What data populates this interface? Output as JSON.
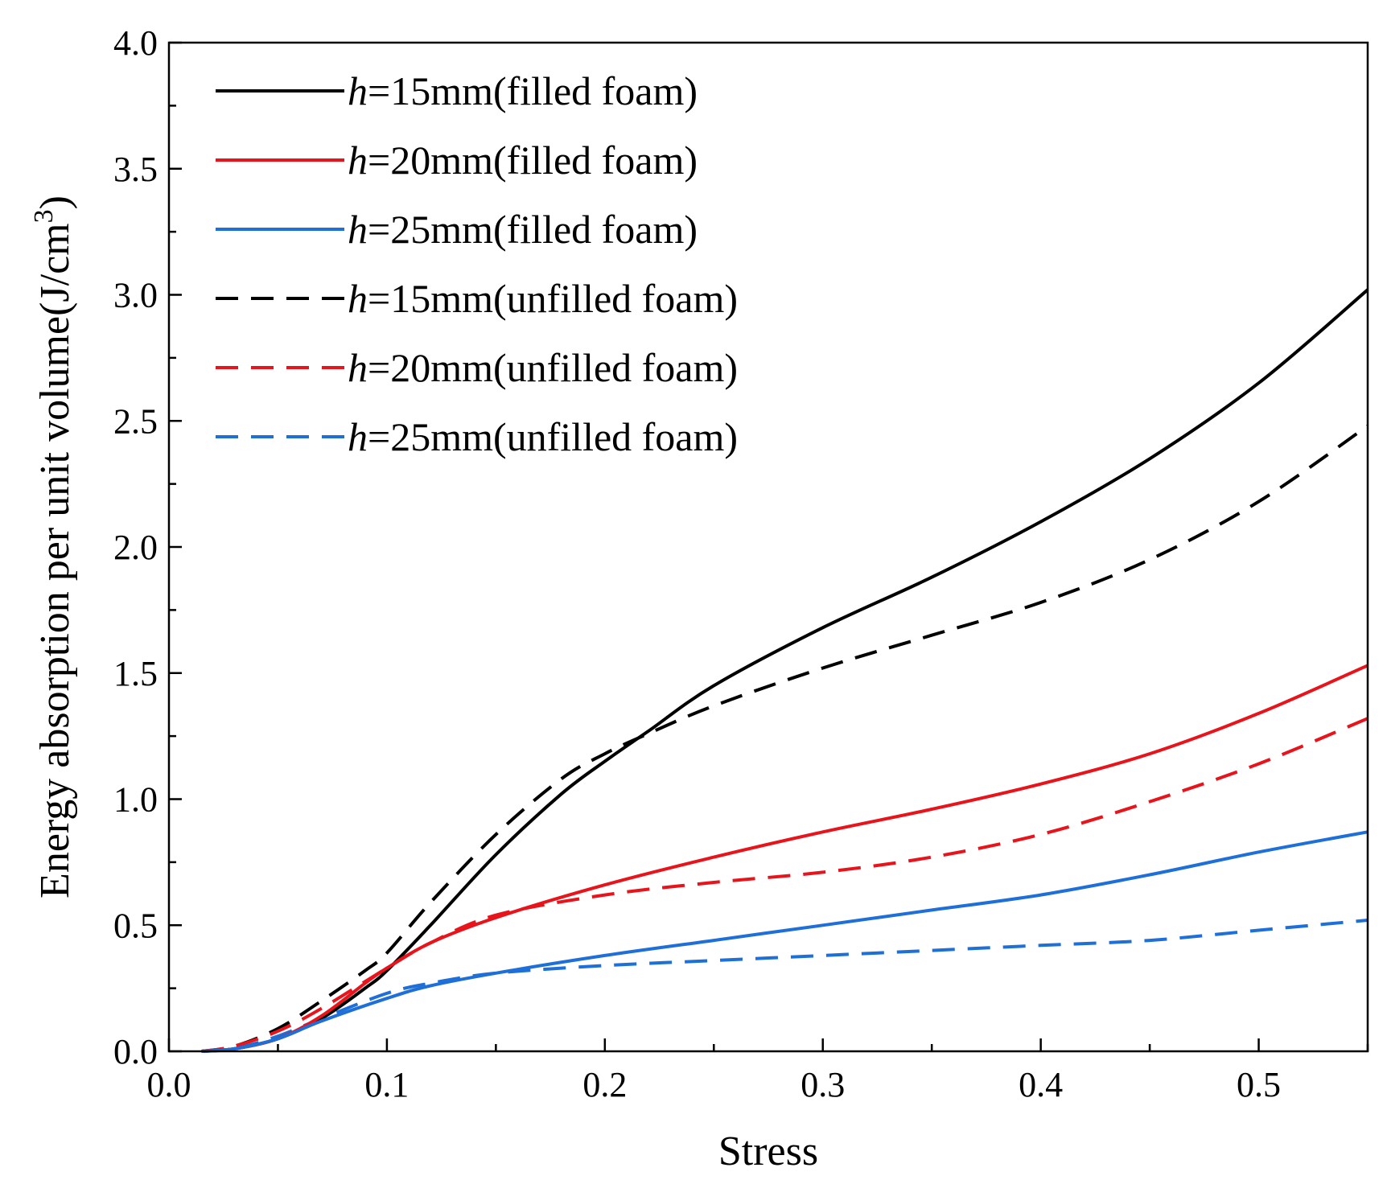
{
  "chart_data": {
    "type": "line",
    "title": "",
    "xlabel": "Stress",
    "ylabel": "Energy absorption per unit volume(J/cm³)",
    "ylabel_main": "Energy absorption per unit volume(J/cm",
    "ylabel_sup": "3",
    "ylabel_close": ")",
    "xlim": [
      0.0,
      0.55
    ],
    "ylim": [
      0.0,
      4.0
    ],
    "xticks": [
      "0.0",
      "0.1",
      "0.2",
      "0.3",
      "0.4",
      "0.5"
    ],
    "yticks": [
      "0.0",
      "0.5",
      "1.0",
      "1.5",
      "2.0",
      "2.5",
      "3.0",
      "3.5",
      "4.0"
    ],
    "legend_position": "top-left",
    "series": [
      {
        "name": "h=15mm(filled foam)",
        "label_var": "h",
        "label_rest": "=15mm(filled foam)",
        "color": "#000000",
        "dash": "solid",
        "x": [
          0.015,
          0.03,
          0.05,
          0.07,
          0.09,
          0.1,
          0.12,
          0.15,
          0.18,
          0.2,
          0.22,
          0.25,
          0.3,
          0.35,
          0.4,
          0.45,
          0.5,
          0.55
        ],
        "y": [
          0.0,
          0.01,
          0.05,
          0.13,
          0.25,
          0.32,
          0.5,
          0.78,
          1.02,
          1.15,
          1.27,
          1.45,
          1.68,
          1.88,
          2.1,
          2.35,
          2.65,
          3.02
        ]
      },
      {
        "name": "h=20mm(filled foam)",
        "label_var": "h",
        "label_rest": "=20mm(filled foam)",
        "color": "#e8141c",
        "dash": "solid",
        "x": [
          0.015,
          0.03,
          0.05,
          0.07,
          0.09,
          0.1,
          0.12,
          0.15,
          0.2,
          0.25,
          0.3,
          0.35,
          0.4,
          0.45,
          0.5,
          0.55
        ],
        "y": [
          0.0,
          0.01,
          0.05,
          0.14,
          0.27,
          0.33,
          0.43,
          0.53,
          0.66,
          0.77,
          0.87,
          0.96,
          1.06,
          1.18,
          1.34,
          1.53
        ]
      },
      {
        "name": "h=25mm(filled foam)",
        "label_var": "h",
        "label_rest": "=25mm(filled foam)",
        "color": "#1f6fd8",
        "dash": "solid",
        "x": [
          0.015,
          0.03,
          0.05,
          0.07,
          0.1,
          0.12,
          0.15,
          0.2,
          0.25,
          0.3,
          0.35,
          0.4,
          0.45,
          0.5,
          0.55
        ],
        "y": [
          0.0,
          0.01,
          0.05,
          0.12,
          0.21,
          0.26,
          0.31,
          0.38,
          0.44,
          0.5,
          0.56,
          0.62,
          0.7,
          0.79,
          0.87
        ]
      },
      {
        "name": "h=15mm(unfilled foam)",
        "label_var": "h",
        "label_rest": "=15mm(unfilled foam)",
        "color": "#000000",
        "dash": "dashed",
        "x": [
          0.015,
          0.03,
          0.05,
          0.07,
          0.09,
          0.1,
          0.12,
          0.15,
          0.18,
          0.2,
          0.22,
          0.25,
          0.3,
          0.35,
          0.4,
          0.45,
          0.5,
          0.55
        ],
        "y": [
          0.0,
          0.02,
          0.09,
          0.2,
          0.32,
          0.39,
          0.59,
          0.86,
          1.08,
          1.18,
          1.26,
          1.37,
          1.52,
          1.65,
          1.78,
          1.95,
          2.18,
          2.48
        ]
      },
      {
        "name": "h=20mm(unfilled foam)",
        "label_var": "h",
        "label_rest": "=20mm(unfilled foam)",
        "color": "#e8141c",
        "dash": "dashed",
        "x": [
          0.015,
          0.03,
          0.05,
          0.07,
          0.1,
          0.12,
          0.15,
          0.2,
          0.25,
          0.3,
          0.35,
          0.4,
          0.45,
          0.5,
          0.55
        ],
        "y": [
          0.0,
          0.02,
          0.08,
          0.17,
          0.33,
          0.43,
          0.54,
          0.62,
          0.67,
          0.71,
          0.77,
          0.86,
          0.99,
          1.14,
          1.32
        ]
      },
      {
        "name": "h=25mm(unfilled foam)",
        "label_var": "h",
        "label_rest": "=25mm(unfilled foam)",
        "color": "#1f6fd8",
        "dash": "dashed",
        "x": [
          0.015,
          0.03,
          0.05,
          0.07,
          0.1,
          0.12,
          0.15,
          0.2,
          0.25,
          0.3,
          0.35,
          0.4,
          0.45,
          0.5,
          0.55
        ],
        "y": [
          0.0,
          0.01,
          0.06,
          0.13,
          0.23,
          0.27,
          0.31,
          0.34,
          0.36,
          0.38,
          0.4,
          0.42,
          0.44,
          0.48,
          0.52
        ]
      }
    ]
  }
}
